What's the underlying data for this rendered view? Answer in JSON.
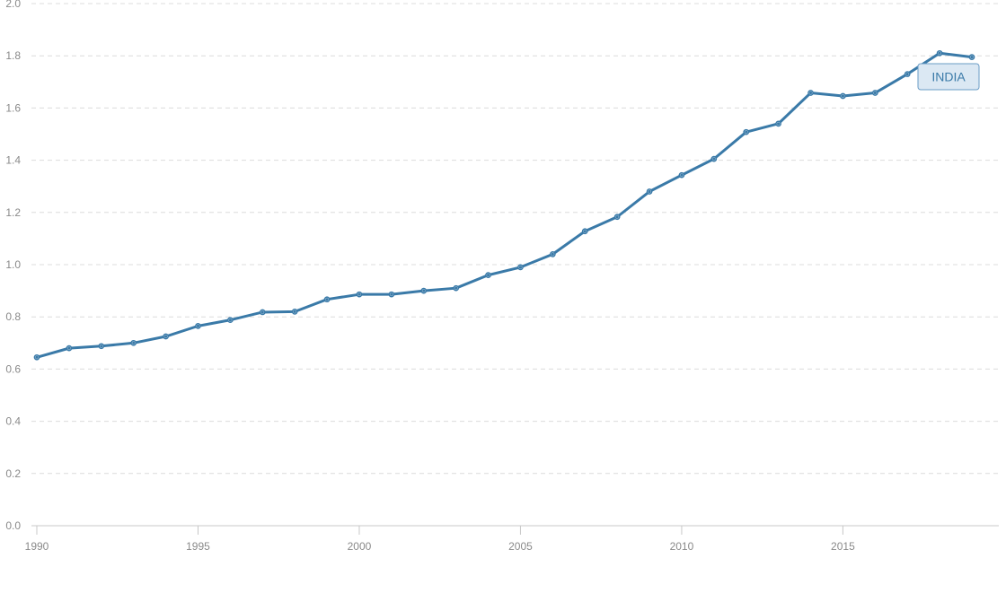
{
  "chart_data": {
    "type": "line",
    "title": "",
    "xlabel": "",
    "ylabel": "",
    "xlim": [
      1990,
      2019
    ],
    "ylim": [
      0,
      2.0
    ],
    "x_ticks": [
      1990,
      1995,
      2000,
      2005,
      2010,
      2015
    ],
    "y_ticks": [
      "0.0",
      "0.2",
      "0.4",
      "0.6",
      "0.8",
      "1.0",
      "1.2",
      "1.4",
      "1.6",
      "1.8",
      "2.0"
    ],
    "grid": true,
    "legend": "top-right",
    "x": [
      1990,
      1991,
      1992,
      1993,
      1994,
      1995,
      1996,
      1997,
      1998,
      1999,
      2000,
      2001,
      2002,
      2003,
      2004,
      2005,
      2006,
      2007,
      2008,
      2009,
      2010,
      2011,
      2012,
      2013,
      2014,
      2015,
      2016,
      2017,
      2018,
      2019
    ],
    "series": [
      {
        "name": "INDIA",
        "color": "#3a7aa8",
        "values": [
          0.645,
          0.68,
          0.688,
          0.7,
          0.725,
          0.765,
          0.788,
          0.818,
          0.82,
          0.867,
          0.886,
          0.886,
          0.9,
          0.91,
          0.96,
          0.99,
          1.04,
          1.128,
          1.183,
          1.28,
          1.343,
          1.405,
          1.508,
          1.54,
          1.658,
          1.646,
          1.658,
          1.73,
          1.81,
          1.795
        ]
      }
    ]
  },
  "colors": {
    "series_line": "#3a7aa8",
    "legend_fill": "#dbe8f3",
    "legend_border": "#6a9cc6",
    "legend_text": "#3a7aa8"
  }
}
